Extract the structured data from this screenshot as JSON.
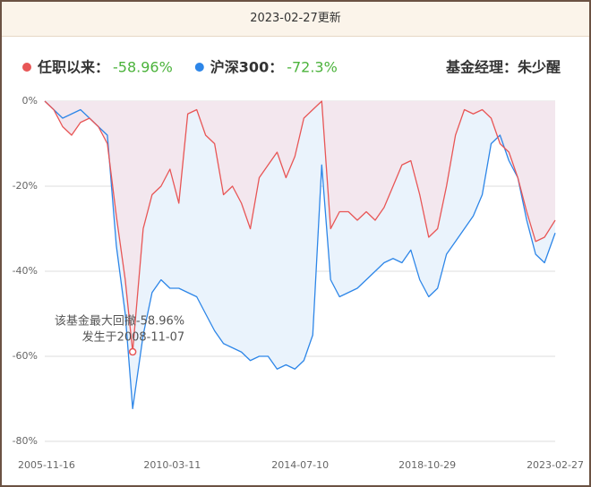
{
  "header": {
    "title": "2023-02-27更新"
  },
  "chart_data": {
    "type": "area-line",
    "manager": "基金经理：朱少醒",
    "xlim": [
      "2005-11-16",
      "2023-02-27"
    ],
    "xticks": [
      "2005-11-16",
      "2010-03-11",
      "2014-07-10",
      "2018-10-29",
      "2023-02-27"
    ],
    "ylim": [
      -80,
      0
    ],
    "yticks": [
      {
        "value": 0,
        "label": "0%"
      },
      {
        "value": -20,
        "label": "-20%"
      },
      {
        "value": -40,
        "label": "-40%"
      },
      {
        "value": -60,
        "label": "-60%"
      },
      {
        "value": -80,
        "label": "-80%"
      }
    ],
    "grid": true,
    "x": [
      "2005-11-16",
      "2006-03-07",
      "2006-06-25",
      "2006-10-14",
      "2007-02-01",
      "2007-05-23",
      "2007-09-10",
      "2007-12-30",
      "2008-04-19",
      "2008-08-07",
      "2008-11-07",
      "2009-03-17",
      "2009-07-05",
      "2009-10-24",
      "2010-02-11",
      "2010-06-01",
      "2010-09-19",
      "2011-01-08",
      "2011-04-28",
      "2011-08-17",
      "2011-12-05",
      "2012-03-25",
      "2012-07-14",
      "2012-11-01",
      "2013-02-19",
      "2013-06-09",
      "2013-09-28",
      "2014-01-16",
      "2014-05-06",
      "2014-08-25",
      "2014-12-13",
      "2015-04-03",
      "2015-07-22",
      "2015-11-09",
      "2016-02-27",
      "2016-06-16",
      "2016-10-05",
      "2017-01-23",
      "2017-05-13",
      "2017-09-01",
      "2017-12-20",
      "2018-04-09",
      "2018-07-28",
      "2018-11-16",
      "2019-03-06",
      "2019-06-24",
      "2019-10-13",
      "2020-01-31",
      "2020-05-20",
      "2020-09-08",
      "2020-12-27",
      "2021-04-16",
      "2021-08-04",
      "2021-11-22",
      "2022-03-12",
      "2022-06-30",
      "2022-10-18",
      "2023-02-27"
    ],
    "series": [
      {
        "name": "任职以来",
        "label": "任职以来：",
        "color": "#e85656",
        "fill": "#f3e7ee",
        "summary": {
          "value": -58.96,
          "label": "-58.96%"
        },
        "values": [
          0,
          -2,
          -6,
          -8,
          -5,
          -4,
          -6,
          -10,
          -27,
          -42,
          -58.96,
          -30,
          -22,
          -20,
          -16,
          -24,
          -3,
          -2,
          -8,
          -10,
          -22,
          -20,
          -24,
          -30,
          -18,
          -15,
          -12,
          -18,
          -13,
          -4,
          -2,
          0,
          -30,
          -26,
          -26,
          -28,
          -26,
          -28,
          -25,
          -20,
          -15,
          -14,
          -22,
          -32,
          -30,
          -20,
          -8,
          -2,
          -3,
          -2,
          -4,
          -10,
          -12,
          -18,
          -26,
          -33,
          -32,
          -28
        ]
      },
      {
        "name": "沪深300",
        "label": "沪深300：",
        "color": "#2d86e8",
        "fill": "#eaf3fc",
        "summary": {
          "value": -72.3,
          "label": "-72.3%"
        },
        "values": [
          0,
          -2,
          -4,
          -3,
          -2,
          -4,
          -6,
          -8,
          -34,
          -50,
          -72.3,
          -55,
          -45,
          -42,
          -44,
          -44,
          -45,
          -46,
          -50,
          -54,
          -57,
          -58,
          -59,
          -61,
          -60,
          -60,
          -63,
          -62,
          -63,
          -61,
          -55,
          -15,
          -42,
          -46,
          -45,
          -44,
          -42,
          -40,
          -38,
          -37,
          -38,
          -35,
          -42,
          -46,
          -44,
          -36,
          -33,
          -30,
          -27,
          -22,
          -10,
          -8,
          -14,
          -18,
          -28,
          -36,
          -38,
          -31
        ]
      }
    ],
    "annotation": {
      "text": "该基金最大回撤-58.96%",
      "date_text": "发生于2008-11-07",
      "x": "2008-11-07",
      "value": -58.96
    }
  }
}
